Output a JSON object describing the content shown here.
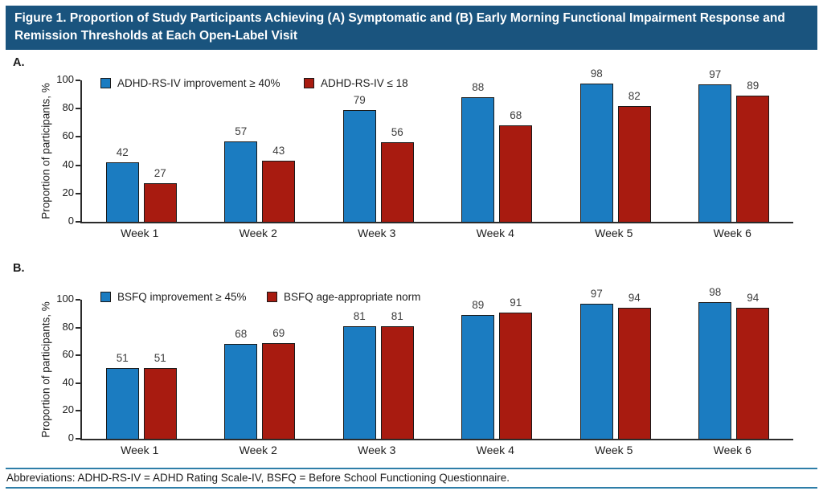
{
  "title": "Figure 1. Proportion of Study Participants Achieving (A) Symptomatic and (B) Early Morning Functional Impairment Response and Remission Thresholds at Each Open-Label Visit",
  "footer": "Abbreviations: ADHD-RS-IV = ADHD Rating Scale-IV, BSFQ = Before School Functioning Questionnaire.",
  "colors": {
    "title_bg": "#1A547E",
    "blue": "#1B7CC1",
    "red": "#A81B10",
    "rule": "#2E7EA8",
    "bar_outline": "#1A1A1A"
  },
  "chart_data": [
    {
      "type": "bar",
      "panel_label": "A.",
      "title": "",
      "categories": [
        "Week 1",
        "Week 2",
        "Week 3",
        "Week 4",
        "Week 5",
        "Week 6"
      ],
      "series": [
        {
          "name": "ADHD-RS-IV improvement ≥ 40%",
          "color_key": "blue",
          "values": [
            42,
            57,
            79,
            88,
            98,
            97
          ]
        },
        {
          "name": "ADHD-RS-IV ≤ 18",
          "color_key": "red",
          "values": [
            27,
            43,
            56,
            68,
            82,
            89
          ]
        }
      ],
      "xlabel": "",
      "ylabel": "Proportion of participants, %",
      "ylim": [
        0,
        100
      ],
      "yticks": [
        0,
        20,
        40,
        60,
        80,
        100
      ],
      "legend_position": "top",
      "grid": false
    },
    {
      "type": "bar",
      "panel_label": "B.",
      "title": "",
      "categories": [
        "Week 1",
        "Week 2",
        "Week 3",
        "Week 4",
        "Week 5",
        "Week 6"
      ],
      "series": [
        {
          "name": "BSFQ improvement ≥ 45%",
          "color_key": "blue",
          "values": [
            51,
            68,
            81,
            89,
            97,
            98
          ]
        },
        {
          "name": "BSFQ age-appropriate norm",
          "color_key": "red",
          "values": [
            51,
            69,
            81,
            91,
            94,
            94
          ]
        }
      ],
      "xlabel": "",
      "ylabel": "Proportion of participants, %",
      "ylim": [
        0,
        100
      ],
      "yticks": [
        0,
        20,
        40,
        60,
        80,
        100
      ],
      "legend_position": "top",
      "grid": false
    }
  ]
}
